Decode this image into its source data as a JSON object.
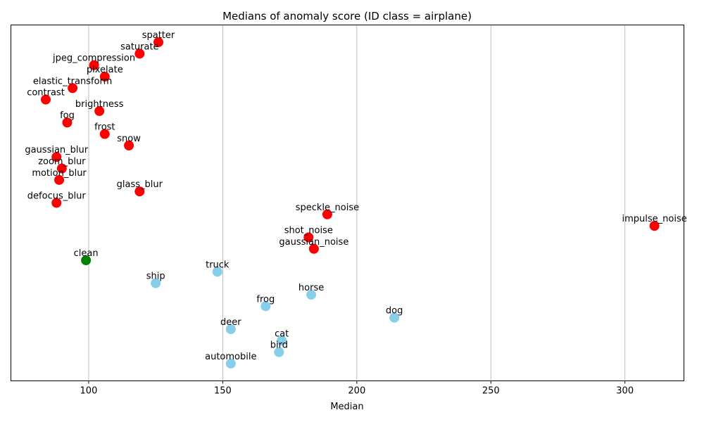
{
  "chart_data": {
    "type": "scatter",
    "title": "Medians of anomaly score (ID class = airplane)",
    "xlabel": "Median",
    "ylabel": "",
    "xlim": [
      71,
      322
    ],
    "xticks": [
      100,
      150,
      200,
      250,
      300
    ],
    "grid": "vertical",
    "colors": {
      "corruption": "#ff0000",
      "clean": "#008000",
      "ood_class": "#87ceeb"
    },
    "points": [
      {
        "label": "spatter",
        "x": 126,
        "rank": 0,
        "group": "corruption"
      },
      {
        "label": "saturate",
        "x": 119,
        "rank": 1,
        "group": "corruption"
      },
      {
        "label": "jpeg_compression",
        "x": 102,
        "rank": 2,
        "group": "corruption"
      },
      {
        "label": "pixelate",
        "x": 106,
        "rank": 3,
        "group": "corruption"
      },
      {
        "label": "elastic_transform",
        "x": 94,
        "rank": 4,
        "group": "corruption"
      },
      {
        "label": "contrast",
        "x": 84,
        "rank": 5,
        "group": "corruption"
      },
      {
        "label": "brightness",
        "x": 104,
        "rank": 6,
        "group": "corruption"
      },
      {
        "label": "fog",
        "x": 92,
        "rank": 7,
        "group": "corruption"
      },
      {
        "label": "frost",
        "x": 106,
        "rank": 8,
        "group": "corruption"
      },
      {
        "label": "snow",
        "x": 115,
        "rank": 9,
        "group": "corruption"
      },
      {
        "label": "gaussian_blur",
        "x": 88,
        "rank": 10,
        "group": "corruption"
      },
      {
        "label": "zoom_blur",
        "x": 90,
        "rank": 11,
        "group": "corruption"
      },
      {
        "label": "motion_blur",
        "x": 89,
        "rank": 12,
        "group": "corruption"
      },
      {
        "label": "glass_blur",
        "x": 119,
        "rank": 13,
        "group": "corruption"
      },
      {
        "label": "defocus_blur",
        "x": 88,
        "rank": 14,
        "group": "corruption"
      },
      {
        "label": "speckle_noise",
        "x": 189,
        "rank": 15,
        "group": "corruption"
      },
      {
        "label": "impulse_noise",
        "x": 311,
        "rank": 16,
        "group": "corruption"
      },
      {
        "label": "shot_noise",
        "x": 182,
        "rank": 17,
        "group": "corruption"
      },
      {
        "label": "gaussian_noise",
        "x": 184,
        "rank": 18,
        "group": "corruption"
      },
      {
        "label": "clean",
        "x": 99,
        "rank": 19,
        "group": "clean"
      },
      {
        "label": "truck",
        "x": 148,
        "rank": 20,
        "group": "ood_class"
      },
      {
        "label": "ship",
        "x": 125,
        "rank": 21,
        "group": "ood_class"
      },
      {
        "label": "horse",
        "x": 183,
        "rank": 22,
        "group": "ood_class"
      },
      {
        "label": "frog",
        "x": 166,
        "rank": 23,
        "group": "ood_class"
      },
      {
        "label": "dog",
        "x": 214,
        "rank": 24,
        "group": "ood_class"
      },
      {
        "label": "deer",
        "x": 153,
        "rank": 25,
        "group": "ood_class"
      },
      {
        "label": "cat",
        "x": 172,
        "rank": 26,
        "group": "ood_class"
      },
      {
        "label": "bird",
        "x": 171,
        "rank": 27,
        "group": "ood_class"
      },
      {
        "label": "automobile",
        "x": 153,
        "rank": 28,
        "group": "ood_class"
      }
    ]
  }
}
